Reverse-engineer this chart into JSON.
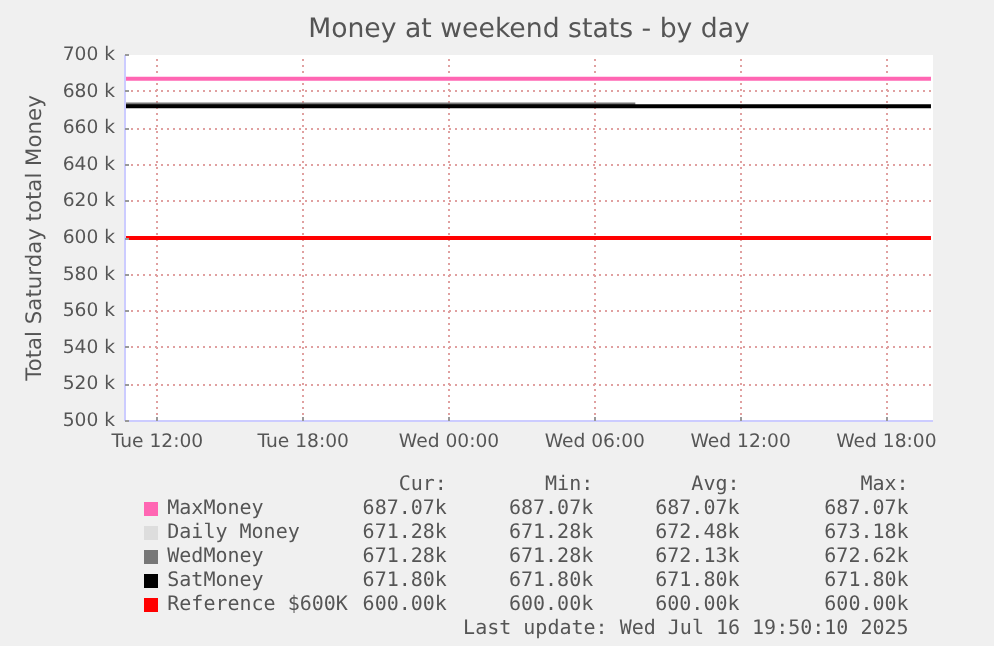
{
  "chart_data": {
    "type": "line",
    "title": "Money at weekend stats - by day",
    "ylabel": "Total Saturday total Money",
    "xlim": [
      "2025-07-15T10:40",
      "2025-07-16T19:55"
    ],
    "xticks": [
      {
        "value": "2025-07-15T12:00",
        "label": "Tue 12:00"
      },
      {
        "value": "2025-07-15T18:00",
        "label": "Tue 18:00"
      },
      {
        "value": "2025-07-16T00:00",
        "label": "Wed 00:00"
      },
      {
        "value": "2025-07-16T06:00",
        "label": "Wed 06:00"
      },
      {
        "value": "2025-07-16T12:00",
        "label": "Wed 12:00"
      },
      {
        "value": "2025-07-16T18:00",
        "label": "Wed 18:00"
      }
    ],
    "ylim": [
      500000,
      700000
    ],
    "yticks": [
      {
        "value": 500000,
        "label": "500 k"
      },
      {
        "value": 520000,
        "label": "520 k"
      },
      {
        "value": 540000,
        "label": "540 k"
      },
      {
        "value": 560000,
        "label": "560 k"
      },
      {
        "value": 580000,
        "label": "580 k"
      },
      {
        "value": 600000,
        "label": "600 k"
      },
      {
        "value": 620000,
        "label": "620 k"
      },
      {
        "value": 640000,
        "label": "640 k"
      },
      {
        "value": 660000,
        "label": "660 k"
      },
      {
        "value": 680000,
        "label": "680 k"
      },
      {
        "value": 700000,
        "label": "700 k"
      }
    ],
    "grid": true,
    "legend": "bottom",
    "series": [
      {
        "name": "MaxMoney",
        "color": "#ff66b3",
        "x": [
          "2025-07-15T10:40",
          "2025-07-16T19:50"
        ],
        "values": [
          687000,
          687000
        ]
      },
      {
        "name": "Daily Money",
        "color": "#dddddd"
      },
      {
        "name": "WedMoney",
        "color": "#777777",
        "x": [
          "2025-07-15T10:40",
          "2025-07-16T07:40"
        ],
        "values": [
          673000,
          673000
        ]
      },
      {
        "name": "SatMoney",
        "color": "#000000",
        "x": [
          "2025-07-15T10:40",
          "2025-07-16T19:50"
        ],
        "values": [
          672000,
          672000
        ]
      },
      {
        "name": "Reference $600K",
        "color": "#ff0000",
        "x": [
          "2025-07-15T10:40",
          "2025-07-16T19:50"
        ],
        "values": [
          600000,
          600000
        ]
      }
    ],
    "annotations": [
      "Cur:",
      "Min:",
      "Avg:",
      "Max:",
      "687.07k",
      "687.07k",
      "687.07k",
      "687.07k",
      "671.28k",
      "671.28k",
      "672.48k",
      "673.18k",
      "671.28k",
      "671.28k",
      "672.13k",
      "672.62k",
      "671.80k",
      "671.80k",
      "671.80k",
      "671.80k",
      "600.00k",
      "600.00k",
      "600.00k",
      "600.00k",
      "Last update: Wed Jul 16 19:50:10 2025"
    ]
  }
}
